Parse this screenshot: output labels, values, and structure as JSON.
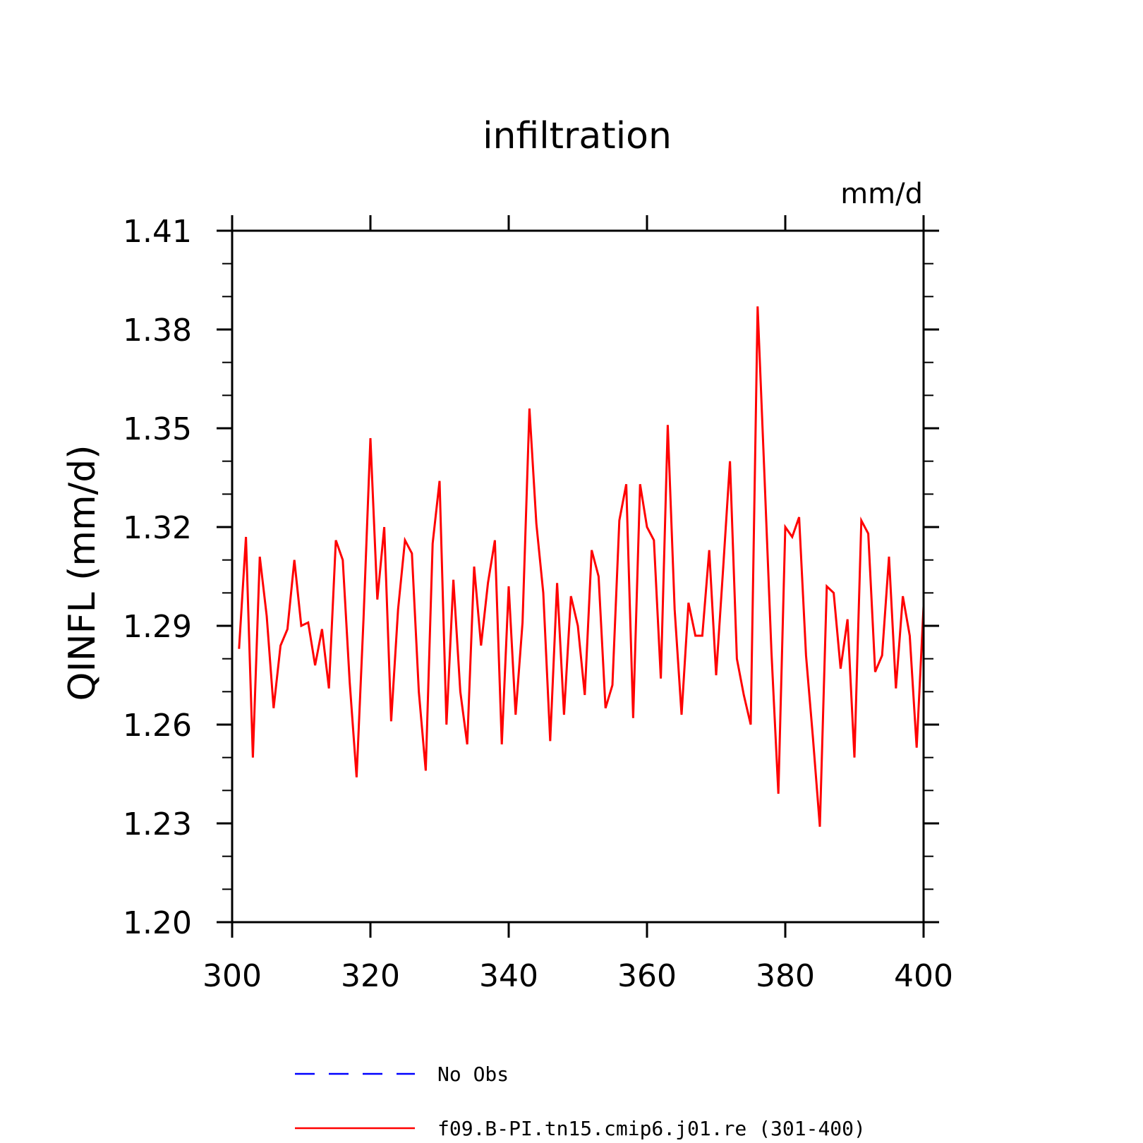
{
  "chart_data": {
    "type": "line",
    "title": "infiltration",
    "units": "mm/d",
    "ylabel": "QINFL  (mm/d)",
    "xlabel": "",
    "xlim": [
      300,
      400
    ],
    "ylim": [
      1.2,
      1.41
    ],
    "xticks": [
      300,
      320,
      340,
      360,
      380,
      400
    ],
    "xtick_labels": [
      "300",
      "320",
      "340",
      "360",
      "380",
      "400"
    ],
    "yticks": [
      1.2,
      1.23,
      1.26,
      1.29,
      1.32,
      1.35,
      1.38,
      1.41
    ],
    "ytick_labels": [
      "1.20",
      "1.23",
      "1.26",
      "1.29",
      "1.32",
      "1.35",
      "1.38",
      "1.41"
    ],
    "grid": false,
    "legend_position": "bottom",
    "series": [
      {
        "name": "No Obs",
        "color": "#0000ff",
        "dash": "dashed",
        "x": [],
        "y": []
      },
      {
        "name": "f09.B-PI.tn15.cmip6.j01.re (301-400)",
        "color": "#ff0000",
        "dash": "solid",
        "x": [
          301,
          302,
          303,
          304,
          305,
          306,
          307,
          308,
          309,
          310,
          311,
          312,
          313,
          314,
          315,
          316,
          317,
          318,
          319,
          320,
          321,
          322,
          323,
          324,
          325,
          326,
          327,
          328,
          329,
          330,
          331,
          332,
          333,
          334,
          335,
          336,
          337,
          338,
          339,
          340,
          341,
          342,
          343,
          344,
          345,
          346,
          347,
          348,
          349,
          350,
          351,
          352,
          353,
          354,
          355,
          356,
          357,
          358,
          359,
          360,
          361,
          362,
          363,
          364,
          365,
          366,
          367,
          368,
          369,
          370,
          371,
          372,
          373,
          374,
          375,
          376,
          377,
          378,
          379,
          380,
          381,
          382,
          383,
          384,
          385,
          386,
          387,
          388,
          389,
          390,
          391,
          392,
          393,
          394,
          395,
          396,
          397,
          398,
          399,
          400
        ],
        "y": [
          1.283,
          1.317,
          1.25,
          1.311,
          1.293,
          1.265,
          1.284,
          1.289,
          1.31,
          1.29,
          1.291,
          1.278,
          1.289,
          1.271,
          1.316,
          1.31,
          1.273,
          1.244,
          1.292,
          1.347,
          1.298,
          1.32,
          1.261,
          1.295,
          1.316,
          1.312,
          1.27,
          1.246,
          1.315,
          1.334,
          1.26,
          1.304,
          1.27,
          1.254,
          1.308,
          1.284,
          1.303,
          1.316,
          1.254,
          1.302,
          1.263,
          1.291,
          1.356,
          1.321,
          1.3,
          1.255,
          1.303,
          1.263,
          1.299,
          1.29,
          1.269,
          1.313,
          1.305,
          1.265,
          1.272,
          1.322,
          1.333,
          1.262,
          1.333,
          1.32,
          1.316,
          1.274,
          1.351,
          1.295,
          1.263,
          1.297,
          1.287,
          1.287,
          1.313,
          1.275,
          1.307,
          1.34,
          1.28,
          1.269,
          1.26,
          1.387,
          1.335,
          1.282,
          1.239,
          1.32,
          1.317,
          1.323,
          1.281,
          1.256,
          1.229,
          1.302,
          1.3,
          1.277,
          1.292,
          1.25,
          1.322,
          1.318,
          1.276,
          1.281,
          1.311,
          1.271,
          1.299,
          1.287,
          1.253,
          1.296
        ]
      }
    ]
  }
}
